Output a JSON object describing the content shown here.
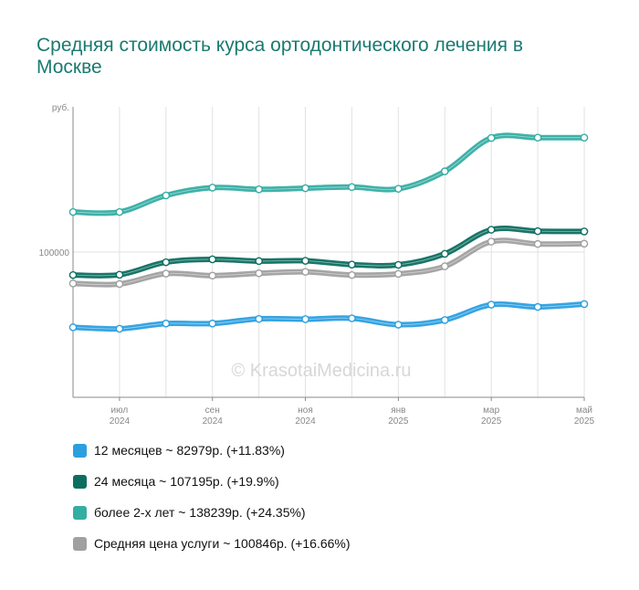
{
  "title": "Средняя стоимость курса ортодонтического лечения в Москве",
  "watermark": "© KrasotaiMedicina.ru",
  "chart_data": {
    "type": "line",
    "ylabel": "руб.",
    "y_tick_labels": [
      {
        "value": 100000,
        "label": "100000"
      }
    ],
    "ylim": [
      50000,
      150000
    ],
    "grid": true,
    "x": [
      "2024-06",
      "2024-07",
      "2024-08",
      "2024-09",
      "2024-10",
      "2024-11",
      "2024-12",
      "2025-01",
      "2025-02",
      "2025-03",
      "2025-04",
      "2025-05"
    ],
    "x_tick_labels": [
      {
        "index": 1,
        "month": "июл",
        "year": "2024"
      },
      {
        "index": 3,
        "month": "сен",
        "year": "2024"
      },
      {
        "index": 5,
        "month": "ноя",
        "year": "2024"
      },
      {
        "index": 7,
        "month": "янв",
        "year": "2025"
      },
      {
        "index": 9,
        "month": "мар",
        "year": "2025"
      },
      {
        "index": 11,
        "month": "май",
        "year": "2025"
      }
    ],
    "series": [
      {
        "name": "12 месяцев",
        "color": "#2b9fe0",
        "values": [
          74100,
          73600,
          75400,
          75400,
          77000,
          76900,
          77200,
          75000,
          76600,
          81900,
          81100,
          82100
        ]
      },
      {
        "name": "24 месяца",
        "color": "#0d6e60",
        "values": [
          92100,
          92200,
          96500,
          97500,
          96900,
          97000,
          95700,
          95600,
          99400,
          107700,
          107200,
          107100
        ]
      },
      {
        "name": "более 2-х лет",
        "color": "#35ada3",
        "values": [
          113800,
          113800,
          119500,
          122200,
          121600,
          122000,
          122400,
          121800,
          127800,
          139300,
          139400,
          139400
        ]
      },
      {
        "name": "Средняя цена услуги",
        "color": "#a0a0a0",
        "values": [
          89200,
          89000,
          92600,
          91900,
          92700,
          93200,
          92100,
          92500,
          95100,
          103600,
          102800,
          102900
        ]
      }
    ]
  },
  "legend": [
    {
      "label": "12 месяцев ~ 82979р. (+11.83%)",
      "color": "#2b9fe0"
    },
    {
      "label": "24 месяца ~ 107195р. (+19.9%)",
      "color": "#0d6e60"
    },
    {
      "label": "более 2-х лет ~ 138239р. (+24.35%)",
      "color": "#35ada3"
    },
    {
      "label": "Средняя цена услуги ~ 100846р. (+16.66%)",
      "color": "#a0a0a0"
    }
  ]
}
